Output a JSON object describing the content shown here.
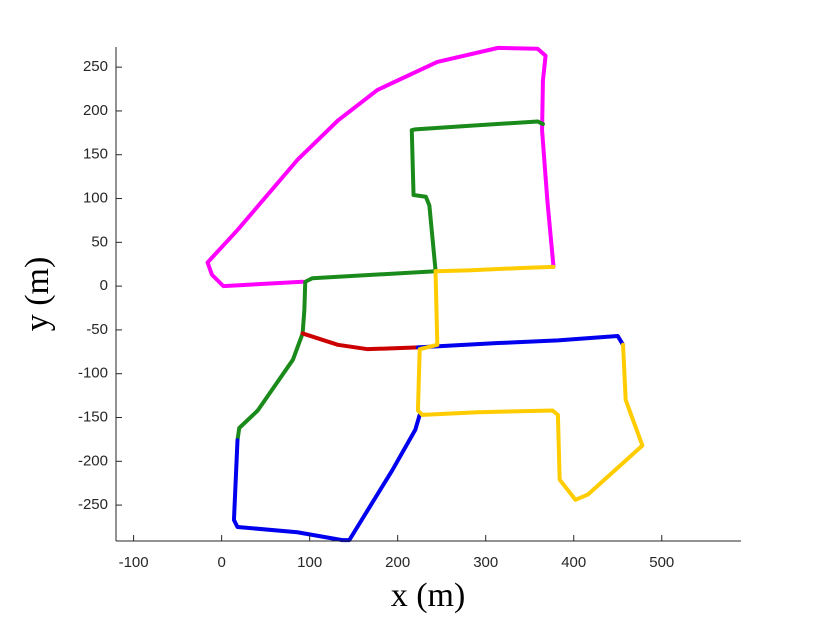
{
  "chart_data": {
    "type": "line",
    "xlabel": "x (m)",
    "ylabel": "y (m)",
    "xlim": [
      -120,
      590
    ],
    "ylim": [
      -291,
      273
    ],
    "xticks": [
      -100,
      0,
      100,
      200,
      300,
      400,
      500
    ],
    "yticks": [
      -250,
      -200,
      -150,
      -100,
      -50,
      0,
      50,
      100,
      150,
      200,
      250
    ],
    "grid": false,
    "series": [
      {
        "color": "#ff00ff",
        "x": [
          92,
          2,
          -11,
          -16,
          18,
          86,
          132,
          177,
          245,
          314,
          359,
          368,
          365,
          364,
          370,
          377
        ],
        "y": [
          5,
          0,
          13,
          27,
          64,
          144,
          189,
          224,
          256,
          272,
          271,
          263,
          235,
          178,
          98,
          22
        ]
      },
      {
        "color": "#1a8a1a",
        "x": [
          243,
          236,
          232,
          218,
          216,
          220,
          280,
          359,
          365
        ],
        "y": [
          18,
          92,
          102,
          104,
          178,
          179,
          183,
          188,
          185
        ]
      },
      {
        "color": "#1a8a1a",
        "x": [
          243,
          103,
          95,
          94,
          92
        ],
        "y": [
          17,
          9,
          5,
          -27,
          -54
        ]
      },
      {
        "color": "#1a8a1a",
        "x": [
          92,
          81,
          41,
          20,
          18
        ],
        "y": [
          -54,
          -84,
          -142,
          -162,
          -176
        ]
      },
      {
        "color": "#cc0000",
        "x": [
          92,
          132,
          166,
          223
        ],
        "y": [
          -54,
          -67,
          -72,
          -70
        ]
      },
      {
        "color": "#0000ee",
        "x": [
          18,
          14,
          18,
          86,
          137,
          145,
          194,
          220,
          225
        ],
        "y": [
          -176,
          -267,
          -275,
          -281,
          -290,
          -290,
          -210,
          -164,
          -147
        ]
      },
      {
        "color": "#0000ee",
        "x": [
          223,
          314,
          382,
          450,
          456
        ],
        "y": [
          -70,
          -65,
          -62,
          -57,
          -67
        ]
      },
      {
        "color": "#ffcc00",
        "x": [
          243,
          280,
          348,
          377
        ],
        "y": [
          17,
          18,
          21,
          22
        ]
      },
      {
        "color": "#ffcc00",
        "x": [
          243,
          245,
          225,
          223,
          228
        ],
        "y": [
          17,
          -67,
          -72,
          -142,
          -147
        ]
      },
      {
        "color": "#ffcc00",
        "x": [
          228,
          291,
          376,
          382,
          384,
          402,
          416,
          478,
          459,
          456
        ],
        "y": [
          -147,
          -144,
          -142,
          -147,
          -221,
          -244,
          -238,
          -182,
          -130,
          -67
        ]
      }
    ]
  }
}
